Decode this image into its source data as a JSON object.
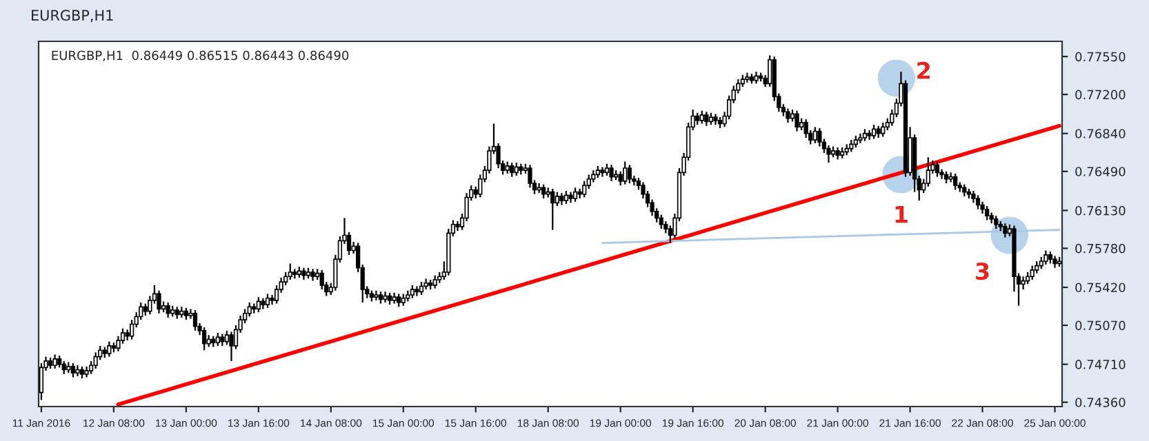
{
  "chart_data": {
    "type": "candlestick",
    "title": "EURGBP,H1",
    "subtitle": "EURGBP,H1  0.86449 0.86515 0.86443 0.86490",
    "categories": [
      "11 Jan 2016",
      null,
      null,
      null,
      null,
      null,
      null,
      null,
      null,
      null,
      null,
      null,
      null,
      null,
      null,
      null,
      "12 Jan 08:00",
      null,
      null,
      null,
      null,
      null,
      null,
      null,
      null,
      null,
      null,
      null,
      null,
      null,
      null,
      null,
      "13 Jan 00:00",
      null,
      null,
      null,
      null,
      null,
      null,
      null,
      null,
      null,
      null,
      null,
      null,
      null,
      null,
      null,
      "13 Jan 16:00",
      null,
      null,
      null,
      null,
      null,
      null,
      null,
      null,
      null,
      null,
      null,
      null,
      null,
      null,
      null,
      "14 Jan 08:00",
      null,
      null,
      null,
      null,
      null,
      null,
      null,
      null,
      null,
      null,
      null,
      null,
      null,
      null,
      null,
      "15 Jan 00:00",
      null,
      null,
      null,
      null,
      null,
      null,
      null,
      null,
      null,
      null,
      null,
      null,
      null,
      null,
      null,
      "15 Jan 16:00",
      null,
      null,
      null,
      null,
      null,
      null,
      null,
      null,
      null,
      null,
      null,
      null,
      null,
      null,
      null,
      "18 Jan 08:00",
      null,
      null,
      null,
      null,
      null,
      null,
      null,
      null,
      null,
      null,
      null,
      null,
      null,
      null,
      null,
      "19 Jan 00:00",
      null,
      null,
      null,
      null,
      null,
      null,
      null,
      null,
      null,
      null,
      null,
      null,
      null,
      null,
      null,
      "19 Jan 16:00",
      null,
      null,
      null,
      null,
      null,
      null,
      null,
      null,
      null,
      null,
      null,
      null,
      null,
      null,
      null,
      "20 Jan 08:00",
      null,
      null,
      null,
      null,
      null,
      null,
      null,
      null,
      null,
      null,
      null,
      null,
      null,
      null,
      null,
      "21 Jan 00:00",
      null,
      null,
      null,
      null,
      null,
      null,
      null,
      null,
      null,
      null,
      null,
      null,
      null,
      null,
      null,
      "21 Jan 16:00",
      null,
      null,
      null,
      null,
      null,
      null,
      null,
      null,
      null,
      null,
      null,
      null,
      null,
      null,
      null,
      "22 Jan 08:00",
      null,
      null,
      null,
      null,
      null,
      null,
      null,
      null,
      null,
      null,
      null,
      null,
      null,
      null,
      null,
      "25 Jan 00:00",
      null
    ],
    "ohlc": [
      [
        0.7445,
        0.7472,
        0.7438,
        0.7468
      ],
      [
        0.7468,
        0.7478,
        0.7465,
        0.7474
      ],
      [
        0.7474,
        0.7477,
        0.7467,
        0.747
      ],
      [
        0.747,
        0.748,
        0.7467,
        0.7476
      ],
      [
        0.7476,
        0.7479,
        0.7468,
        0.7471
      ],
      [
        0.7471,
        0.7474,
        0.7462,
        0.7466
      ],
      [
        0.7466,
        0.7473,
        0.7463,
        0.7469
      ],
      [
        0.7469,
        0.7472,
        0.7459,
        0.7463
      ],
      [
        0.7463,
        0.747,
        0.746,
        0.7466
      ],
      [
        0.7466,
        0.7469,
        0.7458,
        0.7462
      ],
      [
        0.7462,
        0.7469,
        0.7459,
        0.7465
      ],
      [
        0.7465,
        0.7474,
        0.7462,
        0.747
      ],
      [
        0.747,
        0.7482,
        0.7467,
        0.7478
      ],
      [
        0.7478,
        0.7488,
        0.7475,
        0.7484
      ],
      [
        0.7484,
        0.7487,
        0.7477,
        0.7481
      ],
      [
        0.7481,
        0.7492,
        0.7478,
        0.7488
      ],
      [
        0.7488,
        0.7491,
        0.7482,
        0.7486
      ],
      [
        0.7486,
        0.7497,
        0.7483,
        0.7493
      ],
      [
        0.7493,
        0.7504,
        0.749,
        0.75
      ],
      [
        0.75,
        0.7503,
        0.7493,
        0.7497
      ],
      [
        0.7497,
        0.7512,
        0.7494,
        0.7508
      ],
      [
        0.7508,
        0.7519,
        0.7505,
        0.7515
      ],
      [
        0.7515,
        0.7528,
        0.7512,
        0.7524
      ],
      [
        0.7524,
        0.7527,
        0.7516,
        0.752
      ],
      [
        0.752,
        0.7534,
        0.7517,
        0.753
      ],
      [
        0.753,
        0.7544,
        0.7527,
        0.7536
      ],
      [
        0.7536,
        0.7539,
        0.7518,
        0.7522
      ],
      [
        0.7522,
        0.7529,
        0.7519,
        0.7525
      ],
      [
        0.7525,
        0.7528,
        0.7514,
        0.7518
      ],
      [
        0.7518,
        0.7525,
        0.7515,
        0.7521
      ],
      [
        0.7521,
        0.7524,
        0.7513,
        0.7517
      ],
      [
        0.7517,
        0.7524,
        0.7514,
        0.752
      ],
      [
        0.752,
        0.7523,
        0.7512,
        0.7516
      ],
      [
        0.7516,
        0.7522,
        0.7513,
        0.7518
      ],
      [
        0.7518,
        0.7521,
        0.7502,
        0.7506
      ],
      [
        0.7506,
        0.7509,
        0.7498,
        0.7502
      ],
      [
        0.7502,
        0.7505,
        0.7484,
        0.749
      ],
      [
        0.749,
        0.7498,
        0.7487,
        0.7494
      ],
      [
        0.7494,
        0.7497,
        0.7487,
        0.7491
      ],
      [
        0.7491,
        0.75,
        0.7488,
        0.7496
      ],
      [
        0.7496,
        0.7499,
        0.7488,
        0.7492
      ],
      [
        0.7492,
        0.7502,
        0.7489,
        0.7498
      ],
      [
        0.7498,
        0.7501,
        0.7474,
        0.7488
      ],
      [
        0.7488,
        0.7507,
        0.7485,
        0.7503
      ],
      [
        0.7503,
        0.7516,
        0.75,
        0.7512
      ],
      [
        0.7512,
        0.7522,
        0.7509,
        0.7518
      ],
      [
        0.7518,
        0.7528,
        0.7515,
        0.7524
      ],
      [
        0.7524,
        0.7527,
        0.7518,
        0.7522
      ],
      [
        0.7522,
        0.7533,
        0.7519,
        0.7529
      ],
      [
        0.7529,
        0.7532,
        0.7522,
        0.7526
      ],
      [
        0.7526,
        0.7536,
        0.7523,
        0.7532
      ],
      [
        0.7532,
        0.7535,
        0.7526,
        0.753
      ],
      [
        0.753,
        0.7544,
        0.7527,
        0.754
      ],
      [
        0.754,
        0.7551,
        0.7537,
        0.7547
      ],
      [
        0.7547,
        0.7556,
        0.7544,
        0.7552
      ],
      [
        0.7552,
        0.7564,
        0.7549,
        0.7556
      ],
      [
        0.7556,
        0.7559,
        0.755,
        0.7554
      ],
      [
        0.7554,
        0.7561,
        0.7551,
        0.7557
      ],
      [
        0.7557,
        0.756,
        0.7549,
        0.7553
      ],
      [
        0.7553,
        0.756,
        0.755,
        0.7556
      ],
      [
        0.7556,
        0.7559,
        0.7548,
        0.7552
      ],
      [
        0.7552,
        0.7559,
        0.7549,
        0.7555
      ],
      [
        0.7555,
        0.7558,
        0.754,
        0.7544
      ],
      [
        0.7544,
        0.7547,
        0.7534,
        0.7538
      ],
      [
        0.7538,
        0.7546,
        0.7535,
        0.7542
      ],
      [
        0.7542,
        0.7572,
        0.7539,
        0.7568
      ],
      [
        0.7568,
        0.7589,
        0.7565,
        0.7585
      ],
      [
        0.7585,
        0.7606,
        0.7582,
        0.759
      ],
      [
        0.759,
        0.7593,
        0.7572,
        0.7576
      ],
      [
        0.7576,
        0.7584,
        0.7573,
        0.758
      ],
      [
        0.758,
        0.7583,
        0.7556,
        0.756
      ],
      [
        0.756,
        0.7563,
        0.7528,
        0.754
      ],
      [
        0.754,
        0.7543,
        0.7532,
        0.7536
      ],
      [
        0.7536,
        0.7539,
        0.7529,
        0.7533
      ],
      [
        0.7533,
        0.7539,
        0.753,
        0.7535
      ],
      [
        0.7535,
        0.7538,
        0.7527,
        0.7531
      ],
      [
        0.7531,
        0.7538,
        0.7528,
        0.7534
      ],
      [
        0.7534,
        0.7537,
        0.7526,
        0.753
      ],
      [
        0.753,
        0.7537,
        0.7527,
        0.7533
      ],
      [
        0.7533,
        0.7536,
        0.7524,
        0.7528
      ],
      [
        0.7528,
        0.7536,
        0.7525,
        0.7532
      ],
      [
        0.7532,
        0.7539,
        0.7529,
        0.7535
      ],
      [
        0.7535,
        0.7544,
        0.7532,
        0.754
      ],
      [
        0.754,
        0.7543,
        0.7534,
        0.7538
      ],
      [
        0.7538,
        0.7547,
        0.7535,
        0.7543
      ],
      [
        0.7543,
        0.755,
        0.754,
        0.7546
      ],
      [
        0.7546,
        0.7549,
        0.754,
        0.7544
      ],
      [
        0.7544,
        0.7553,
        0.7541,
        0.7549
      ],
      [
        0.7549,
        0.7556,
        0.7546,
        0.7552
      ],
      [
        0.7552,
        0.7566,
        0.7549,
        0.7556
      ],
      [
        0.7556,
        0.7596,
        0.7553,
        0.7592
      ],
      [
        0.7592,
        0.7604,
        0.7589,
        0.76
      ],
      [
        0.76,
        0.7603,
        0.7594,
        0.7598
      ],
      [
        0.7598,
        0.761,
        0.7595,
        0.7606
      ],
      [
        0.7606,
        0.7629,
        0.7603,
        0.7625
      ],
      [
        0.7625,
        0.7636,
        0.7622,
        0.7632
      ],
      [
        0.7632,
        0.7635,
        0.7624,
        0.7628
      ],
      [
        0.7628,
        0.7646,
        0.7625,
        0.7642
      ],
      [
        0.7642,
        0.7654,
        0.7639,
        0.765
      ],
      [
        0.765,
        0.7672,
        0.7647,
        0.7668
      ],
      [
        0.7668,
        0.7693,
        0.7665,
        0.7672
      ],
      [
        0.7672,
        0.7675,
        0.7652,
        0.7656
      ],
      [
        0.7656,
        0.7659,
        0.7646,
        0.765
      ],
      [
        0.765,
        0.7658,
        0.7647,
        0.7654
      ],
      [
        0.7654,
        0.7657,
        0.7644,
        0.7648
      ],
      [
        0.7648,
        0.7657,
        0.7645,
        0.7653
      ],
      [
        0.7653,
        0.7656,
        0.7646,
        0.765
      ],
      [
        0.765,
        0.7656,
        0.7647,
        0.7652
      ],
      [
        0.7652,
        0.7655,
        0.7634,
        0.7638
      ],
      [
        0.7638,
        0.7641,
        0.7628,
        0.7632
      ],
      [
        0.7632,
        0.7638,
        0.7629,
        0.7634
      ],
      [
        0.7634,
        0.7637,
        0.7624,
        0.7628
      ],
      [
        0.7628,
        0.7634,
        0.7625,
        0.763
      ],
      [
        0.763,
        0.7633,
        0.7595,
        0.762
      ],
      [
        0.762,
        0.763,
        0.7617,
        0.7626
      ],
      [
        0.7626,
        0.7629,
        0.7618,
        0.7622
      ],
      [
        0.7622,
        0.7631,
        0.7619,
        0.7627
      ],
      [
        0.7627,
        0.763,
        0.762,
        0.7624
      ],
      [
        0.7624,
        0.7634,
        0.7621,
        0.763
      ],
      [
        0.763,
        0.7633,
        0.7624,
        0.7628
      ],
      [
        0.7628,
        0.764,
        0.7625,
        0.7636
      ],
      [
        0.7636,
        0.7646,
        0.7633,
        0.7642
      ],
      [
        0.7642,
        0.765,
        0.7639,
        0.7646
      ],
      [
        0.7646,
        0.7654,
        0.7643,
        0.765
      ],
      [
        0.765,
        0.7653,
        0.7644,
        0.7648
      ],
      [
        0.7648,
        0.7656,
        0.7645,
        0.7652
      ],
      [
        0.7652,
        0.7655,
        0.764,
        0.7644
      ],
      [
        0.7644,
        0.765,
        0.7641,
        0.7646
      ],
      [
        0.7646,
        0.7649,
        0.7636,
        0.764
      ],
      [
        0.764,
        0.7658,
        0.7637,
        0.7652
      ],
      [
        0.7652,
        0.7655,
        0.7638,
        0.7642
      ],
      [
        0.7642,
        0.7645,
        0.7636,
        0.764
      ],
      [
        0.764,
        0.7643,
        0.7632,
        0.7636
      ],
      [
        0.7636,
        0.7639,
        0.7624,
        0.7628
      ],
      [
        0.7628,
        0.7631,
        0.7616,
        0.762
      ],
      [
        0.762,
        0.7623,
        0.7608,
        0.7612
      ],
      [
        0.7612,
        0.7615,
        0.7602,
        0.7606
      ],
      [
        0.7606,
        0.7609,
        0.7596,
        0.76
      ],
      [
        0.76,
        0.7603,
        0.7592,
        0.7596
      ],
      [
        0.7596,
        0.7599,
        0.7583,
        0.759
      ],
      [
        0.759,
        0.761,
        0.7587,
        0.7606
      ],
      [
        0.7606,
        0.7652,
        0.7603,
        0.7648
      ],
      [
        0.7648,
        0.7666,
        0.7645,
        0.7662
      ],
      [
        0.7662,
        0.7694,
        0.7659,
        0.769
      ],
      [
        0.769,
        0.7706,
        0.7687,
        0.77
      ],
      [
        0.77,
        0.7703,
        0.7692,
        0.7696
      ],
      [
        0.7696,
        0.7705,
        0.7693,
        0.7701
      ],
      [
        0.7701,
        0.7704,
        0.7691,
        0.7695
      ],
      [
        0.7695,
        0.7703,
        0.7692,
        0.7699
      ],
      [
        0.7699,
        0.7702,
        0.7692,
        0.7696
      ],
      [
        0.7696,
        0.7699,
        0.7689,
        0.7693
      ],
      [
        0.7693,
        0.7704,
        0.769,
        0.77
      ],
      [
        0.77,
        0.7719,
        0.7697,
        0.7715
      ],
      [
        0.7715,
        0.7728,
        0.7712,
        0.7724
      ],
      [
        0.7724,
        0.7734,
        0.7721,
        0.773
      ],
      [
        0.773,
        0.7738,
        0.7727,
        0.7734
      ],
      [
        0.7734,
        0.774,
        0.7731,
        0.7736
      ],
      [
        0.7736,
        0.7739,
        0.773,
        0.7733
      ],
      [
        0.7733,
        0.7741,
        0.773,
        0.7737
      ],
      [
        0.7737,
        0.774,
        0.7732,
        0.7735
      ],
      [
        0.7735,
        0.7738,
        0.7727,
        0.773
      ],
      [
        0.773,
        0.7756,
        0.7727,
        0.7752
      ],
      [
        0.7752,
        0.7755,
        0.7714,
        0.7718
      ],
      [
        0.7718,
        0.7721,
        0.7704,
        0.7708
      ],
      [
        0.7708,
        0.7711,
        0.77,
        0.7704
      ],
      [
        0.7704,
        0.7707,
        0.7694,
        0.7698
      ],
      [
        0.7698,
        0.7706,
        0.7695,
        0.7702
      ],
      [
        0.7702,
        0.7705,
        0.7686,
        0.769
      ],
      [
        0.769,
        0.7698,
        0.7687,
        0.7694
      ],
      [
        0.7694,
        0.7697,
        0.768,
        0.7684
      ],
      [
        0.7684,
        0.7687,
        0.7674,
        0.7678
      ],
      [
        0.7678,
        0.769,
        0.7675,
        0.7686
      ],
      [
        0.7686,
        0.7689,
        0.7672,
        0.7676
      ],
      [
        0.7676,
        0.7679,
        0.7666,
        0.767
      ],
      [
        0.767,
        0.7673,
        0.7657,
        0.7665
      ],
      [
        0.7665,
        0.7672,
        0.7662,
        0.7668
      ],
      [
        0.7668,
        0.7671,
        0.766,
        0.7664
      ],
      [
        0.7664,
        0.7671,
        0.7661,
        0.7667
      ],
      [
        0.7667,
        0.7674,
        0.7664,
        0.767
      ],
      [
        0.767,
        0.7678,
        0.7667,
        0.7674
      ],
      [
        0.7674,
        0.7682,
        0.7671,
        0.7678
      ],
      [
        0.7678,
        0.7684,
        0.7675,
        0.768
      ],
      [
        0.768,
        0.7688,
        0.7677,
        0.7684
      ],
      [
        0.7684,
        0.7687,
        0.7678,
        0.7682
      ],
      [
        0.7682,
        0.7692,
        0.7679,
        0.7688
      ],
      [
        0.7688,
        0.7691,
        0.768,
        0.7684
      ],
      [
        0.7684,
        0.7694,
        0.7681,
        0.769
      ],
      [
        0.769,
        0.7698,
        0.7687,
        0.7694
      ],
      [
        0.7694,
        0.7706,
        0.7691,
        0.7702
      ],
      [
        0.7702,
        0.7716,
        0.7699,
        0.7712
      ],
      [
        0.7712,
        0.7741,
        0.7709,
        0.773
      ],
      [
        0.773,
        0.7733,
        0.7644,
        0.7648
      ],
      [
        0.7648,
        0.769,
        0.7645,
        0.768
      ],
      [
        0.768,
        0.7683,
        0.763,
        0.7642
      ],
      [
        0.7642,
        0.7645,
        0.7622,
        0.7632
      ],
      [
        0.7632,
        0.7642,
        0.7629,
        0.7638
      ],
      [
        0.7638,
        0.7662,
        0.7635,
        0.765
      ],
      [
        0.765,
        0.7659,
        0.7647,
        0.7655
      ],
      [
        0.7655,
        0.7658,
        0.7644,
        0.7648
      ],
      [
        0.7648,
        0.7651,
        0.7642,
        0.7646
      ],
      [
        0.7646,
        0.7649,
        0.7638,
        0.7642
      ],
      [
        0.7642,
        0.7648,
        0.7639,
        0.7644
      ],
      [
        0.7644,
        0.7647,
        0.7632,
        0.7636
      ],
      [
        0.7636,
        0.7639,
        0.763,
        0.7634
      ],
      [
        0.7634,
        0.7637,
        0.7626,
        0.763
      ],
      [
        0.763,
        0.7633,
        0.7624,
        0.7628
      ],
      [
        0.7628,
        0.7631,
        0.762,
        0.7624
      ],
      [
        0.7624,
        0.7627,
        0.7614,
        0.7618
      ],
      [
        0.7618,
        0.7621,
        0.761,
        0.7614
      ],
      [
        0.7614,
        0.7617,
        0.7604,
        0.7608
      ],
      [
        0.7608,
        0.7611,
        0.7601,
        0.7605
      ],
      [
        0.7605,
        0.7608,
        0.7596,
        0.76
      ],
      [
        0.76,
        0.7603,
        0.7594,
        0.7598
      ],
      [
        0.7598,
        0.7601,
        0.7588,
        0.7592
      ],
      [
        0.7592,
        0.76,
        0.7589,
        0.7596
      ],
      [
        0.7596,
        0.7599,
        0.7538,
        0.7552
      ],
      [
        0.7552,
        0.7555,
        0.7525,
        0.7545
      ],
      [
        0.7545,
        0.7552,
        0.754,
        0.7548
      ],
      [
        0.7548,
        0.7556,
        0.7545,
        0.7552
      ],
      [
        0.7552,
        0.7562,
        0.7549,
        0.7558
      ],
      [
        0.7558,
        0.7566,
        0.7555,
        0.7562
      ],
      [
        0.7562,
        0.757,
        0.7559,
        0.7566
      ],
      [
        0.7566,
        0.7576,
        0.7563,
        0.7572
      ],
      [
        0.7572,
        0.7575,
        0.7564,
        0.7568
      ],
      [
        0.7568,
        0.7571,
        0.756,
        0.7564
      ],
      [
        0.7564,
        0.757,
        0.7561,
        0.7566
      ]
    ],
    "series": [
      {
        "type": "line",
        "color": "#ff0000",
        "values": [
          null,
          null,
          null,
          null,
          null,
          null,
          null,
          null,
          null,
          null,
          null,
          null,
          null,
          null,
          null,
          null,
          null,
          0.7434,
          null,
          null,
          null,
          null,
          null,
          null,
          null,
          null,
          null,
          null,
          null,
          null,
          null,
          null,
          null,
          null,
          null,
          null,
          null,
          null,
          null,
          null,
          null,
          null,
          null,
          null,
          null,
          null,
          null,
          null,
          null,
          null,
          null,
          null,
          null,
          null,
          null,
          null,
          null,
          null,
          null,
          null,
          null,
          null,
          null,
          null,
          null,
          null,
          null,
          null,
          null,
          null,
          null,
          null,
          null,
          null,
          null,
          null,
          null,
          null,
          null,
          null,
          null,
          null,
          null,
          null,
          null,
          null,
          null,
          null,
          null,
          null,
          null,
          null,
          null,
          null,
          null,
          null,
          null,
          null,
          null,
          null,
          null,
          null,
          null,
          null,
          null,
          null,
          null,
          null,
          null,
          null,
          null,
          null,
          null,
          null,
          null,
          null,
          null,
          null,
          null,
          null,
          null,
          null,
          null,
          null,
          null,
          null,
          null,
          null,
          null,
          null,
          null,
          null,
          null,
          null,
          null,
          null,
          null,
          null,
          null,
          null,
          null,
          null,
          null,
          null,
          null,
          null,
          null,
          null,
          null,
          null,
          null,
          null,
          null,
          null,
          null,
          null,
          null,
          null,
          null,
          null,
          null,
          null,
          null,
          null,
          null,
          null,
          null,
          null,
          null,
          null,
          null,
          null,
          null,
          null,
          null,
          null,
          null,
          null,
          null,
          null,
          null,
          null,
          null,
          null,
          null,
          null,
          null,
          null,
          null,
          null,
          null,
          null,
          null,
          null,
          null,
          null,
          null,
          null,
          null,
          null,
          null,
          null,
          null,
          null,
          null,
          null,
          null,
          null,
          null,
          null,
          null,
          null,
          null,
          null,
          null,
          null,
          null,
          null,
          null,
          null,
          null,
          null,
          null,
          null,
          null,
          0.7691
        ]
      },
      {
        "type": "line",
        "color": "#a8c8e8",
        "values": [
          null,
          null,
          null,
          null,
          null,
          null,
          null,
          null,
          null,
          null,
          null,
          null,
          null,
          null,
          null,
          null,
          null,
          null,
          null,
          null,
          null,
          null,
          null,
          null,
          null,
          null,
          null,
          null,
          null,
          null,
          null,
          null,
          null,
          null,
          null,
          null,
          null,
          null,
          null,
          null,
          null,
          null,
          null,
          null,
          null,
          null,
          null,
          null,
          null,
          null,
          null,
          null,
          null,
          null,
          null,
          null,
          null,
          null,
          null,
          null,
          null,
          null,
          null,
          null,
          null,
          null,
          null,
          null,
          null,
          null,
          null,
          null,
          null,
          null,
          null,
          null,
          null,
          null,
          null,
          null,
          null,
          null,
          null,
          null,
          null,
          null,
          null,
          null,
          null,
          null,
          null,
          null,
          null,
          null,
          null,
          null,
          null,
          null,
          null,
          null,
          null,
          null,
          null,
          null,
          null,
          null,
          null,
          null,
          null,
          null,
          null,
          null,
          null,
          null,
          null,
          null,
          null,
          null,
          null,
          null,
          null,
          null,
          null,
          null,
          0.7583,
          null,
          null,
          null,
          null,
          null,
          null,
          null,
          null,
          null,
          null,
          null,
          null,
          null,
          null,
          null,
          null,
          null,
          null,
          null,
          null,
          null,
          null,
          null,
          null,
          null,
          null,
          null,
          null,
          null,
          null,
          null,
          null,
          null,
          null,
          null,
          null,
          null,
          null,
          null,
          null,
          null,
          null,
          null,
          null,
          null,
          null,
          null,
          null,
          null,
          null,
          null,
          null,
          null,
          null,
          null,
          null,
          null,
          null,
          null,
          null,
          null,
          null,
          null,
          null,
          null,
          null,
          null,
          null,
          null,
          null,
          null,
          null,
          null,
          null,
          null,
          null,
          null,
          null,
          null,
          null,
          null,
          null,
          null,
          null,
          null,
          null,
          null,
          null,
          null,
          null,
          null,
          null,
          null,
          null,
          null,
          null,
          null,
          null,
          null,
          null,
          0.7595
        ]
      },
      {
        "type": "scatter",
        "color": "#7eb0dd",
        "values": [
          null,
          null,
          null,
          null,
          null,
          null,
          null,
          null,
          null,
          null,
          null,
          null,
          null,
          null,
          null,
          null,
          null,
          null,
          null,
          null,
          null,
          null,
          null,
          null,
          null,
          null,
          null,
          null,
          null,
          null,
          null,
          null,
          null,
          null,
          null,
          null,
          null,
          null,
          null,
          null,
          null,
          null,
          null,
          null,
          null,
          null,
          null,
          null,
          null,
          null,
          null,
          null,
          null,
          null,
          null,
          null,
          null,
          null,
          null,
          null,
          null,
          null,
          null,
          null,
          null,
          null,
          null,
          null,
          null,
          null,
          null,
          null,
          null,
          null,
          null,
          null,
          null,
          null,
          null,
          null,
          null,
          null,
          null,
          null,
          null,
          null,
          null,
          null,
          null,
          null,
          null,
          null,
          null,
          null,
          null,
          null,
          null,
          null,
          null,
          null,
          null,
          null,
          null,
          null,
          null,
          null,
          null,
          null,
          null,
          null,
          null,
          null,
          null,
          null,
          null,
          null,
          null,
          null,
          null,
          null,
          null,
          null,
          null,
          null,
          null,
          null,
          null,
          null,
          null,
          null,
          null,
          null,
          null,
          null,
          null,
          null,
          null,
          null,
          null,
          null,
          null,
          null,
          null,
          null,
          null,
          null,
          null,
          null,
          null,
          null,
          null,
          null,
          null,
          null,
          null,
          null,
          null,
          null,
          null,
          null,
          null,
          null,
          null,
          null,
          null,
          null,
          null,
          null,
          null,
          null,
          null,
          null,
          null,
          null,
          null,
          null,
          null,
          null,
          null,
          null,
          null,
          null,
          null,
          null,
          null,
          null,
          null,
          null,
          null,
          0.7735,
          0.7646,
          null,
          null,
          null,
          null,
          null,
          null,
          null,
          null,
          null,
          null,
          null,
          null,
          null,
          null,
          null,
          null,
          null,
          null,
          null,
          null,
          null,
          null,
          null,
          0.759,
          null,
          null,
          null,
          null,
          null,
          null,
          null,
          null,
          null,
          null,
          null
        ]
      }
    ],
    "annotations": [
      "2",
      "1",
      "3"
    ],
    "ylim": [
      0.7432,
      0.7769
    ],
    "yticks": [
      {
        "value": 0.7436,
        "label": "0.74360"
      },
      {
        "value": 0.7471,
        "label": "0.74710"
      },
      {
        "value": 0.7507,
        "label": "0.75070"
      },
      {
        "value": 0.7542,
        "label": "0.75420"
      },
      {
        "value": 0.7578,
        "label": "0.75780"
      },
      {
        "value": 0.7613,
        "label": "0.76130"
      },
      {
        "value": 0.7649,
        "label": "0.76490"
      },
      {
        "value": 0.7684,
        "label": "0.76840"
      },
      {
        "value": 0.772,
        "label": "0.77200"
      },
      {
        "value": 0.7755,
        "label": "0.77550"
      }
    ],
    "grid": false,
    "legend": false
  }
}
